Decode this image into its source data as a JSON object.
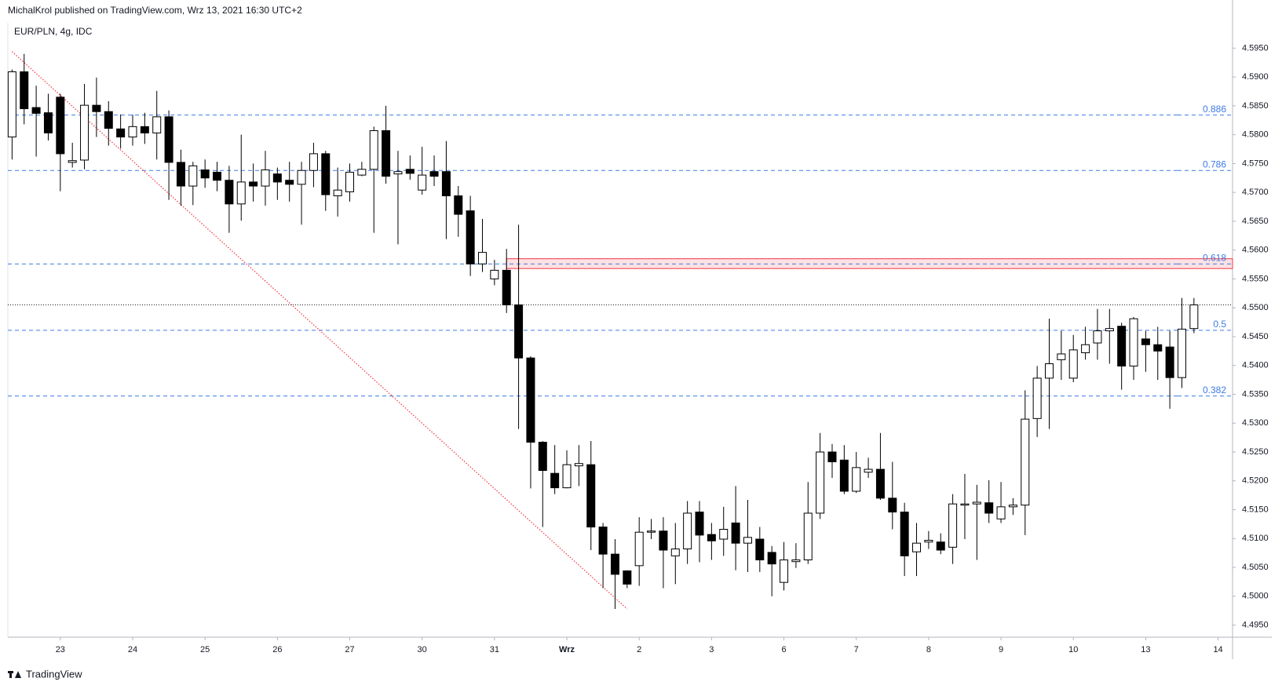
{
  "header": "MichalKrol published on TradingView.com, Wrz 13, 2021 16:30 UTC+2",
  "brand": "TradingView",
  "chart_data": {
    "type": "candlestick",
    "title": "EUR/PLN, 4g, IDC",
    "x": [
      0,
      1,
      2,
      3,
      4,
      5,
      6,
      7,
      8,
      9,
      10,
      11,
      12,
      13,
      14,
      15,
      16,
      17,
      18,
      19,
      20,
      21,
      22,
      23,
      24,
      25,
      26,
      27,
      28,
      29,
      30,
      31,
      32,
      33,
      34,
      35,
      36,
      37,
      38,
      39,
      40,
      41,
      42,
      43,
      44,
      45,
      46,
      47,
      48,
      49,
      50,
      51,
      52,
      53,
      54,
      55,
      56,
      57,
      58,
      59,
      60,
      61,
      62,
      63,
      64,
      65,
      66,
      67,
      68,
      69,
      70,
      71,
      72,
      73,
      74,
      75,
      76,
      77,
      78,
      79,
      80,
      81,
      82,
      83,
      84,
      85,
      86,
      87,
      88,
      89,
      90,
      91,
      92,
      93,
      94,
      95,
      96,
      97,
      98
    ],
    "open": [
      4.5796,
      4.5909,
      4.5847,
      4.5838,
      4.5865,
      4.5752,
      4.5756,
      4.5851,
      4.584,
      4.581,
      4.5796,
      4.5814,
      4.5803,
      4.5831,
      4.5752,
      4.5711,
      4.5739,
      4.5735,
      4.5721,
      4.568,
      4.5718,
      4.5711,
      4.5732,
      4.5721,
      4.5714,
      4.5738,
      4.5767,
      4.5694,
      4.5701,
      4.573,
      4.574,
      4.5807,
      4.5732,
      4.574,
      4.5704,
      4.5736,
      4.5736,
      4.5694,
      4.5668,
      4.5576,
      4.555,
      4.5565,
      4.5505,
      4.5413,
      4.5267,
      4.5213,
      4.5188,
      4.5226,
      4.5228,
      4.512,
      4.5073,
      4.5044,
      4.5053,
      4.5111,
      4.5113,
      4.507,
      4.5082,
      4.5146,
      4.5107,
      4.5099,
      4.5127,
      4.5092,
      4.5099,
      4.5076,
      4.5024,
      4.506,
      4.5063,
      4.5144,
      4.525,
      4.5236,
      4.5182,
      4.5215,
      4.522,
      4.517,
      4.5146,
      4.5077,
      4.5094,
      4.5094,
      4.5085,
      4.5158,
      4.516,
      4.5162,
      4.5134,
      4.5155,
      4.5158,
      4.5308,
      4.5378,
      4.541,
      4.5378,
      4.5422,
      4.5439,
      4.546,
      4.5468,
      4.5399,
      4.5446,
      4.5436,
      4.5432,
      4.5379,
      4.5464
    ],
    "high": [
      4.5913,
      4.594,
      4.5885,
      4.5871,
      4.5871,
      4.5786,
      4.5888,
      4.5899,
      4.5858,
      4.5835,
      4.5835,
      4.5838,
      4.5876,
      4.5842,
      4.5774,
      4.5753,
      4.5757,
      4.5753,
      4.5746,
      4.58,
      4.575,
      4.5772,
      4.5743,
      4.5753,
      4.5753,
      4.5786,
      4.5772,
      4.5743,
      4.575,
      4.5753,
      4.5814,
      4.585,
      4.5772,
      4.5764,
      4.5779,
      4.5764,
      4.5789,
      4.5711,
      4.5694,
      4.5654,
      4.5583,
      4.5602,
      4.5644,
      4.5416,
      4.5269,
      4.5262,
      4.5253,
      4.5262,
      4.5269,
      4.5127,
      4.5099,
      4.5045,
      4.5137,
      4.5134,
      4.5137,
      4.5127,
      4.5165,
      4.5165,
      4.5127,
      4.5155,
      4.5191,
      4.5167,
      4.512,
      4.5087,
      4.5094,
      4.5092,
      4.5198,
      4.5283,
      4.5264,
      4.5262,
      4.525,
      4.524,
      4.5283,
      4.5233,
      4.5162,
      4.5127,
      4.5113,
      4.5109,
      4.5177,
      4.5212,
      4.5193,
      4.5201,
      4.5198,
      4.517,
      4.5357,
      4.5399,
      4.5481,
      4.546,
      4.5453,
      4.5467,
      4.5498,
      4.5498,
      4.5474,
      4.5484,
      4.546,
      4.5467,
      4.546,
      4.5517,
      4.5517
    ],
    "low": [
      4.5757,
      4.5818,
      4.5762,
      4.579,
      4.5702,
      4.5743,
      4.574,
      4.5796,
      4.5781,
      4.5776,
      4.5781,
      4.5784,
      4.5757,
      4.5687,
      4.5677,
      4.5678,
      4.5708,
      4.5702,
      4.563,
      4.5651,
      4.5684,
      4.5677,
      4.5687,
      4.5684,
      4.5644,
      4.5709,
      4.5668,
      4.5658,
      4.5684,
      4.5728,
      4.563,
      4.5715,
      4.561,
      4.5722,
      4.5696,
      4.5711,
      4.5619,
      4.5623,
      4.5555,
      4.5562,
      4.5539,
      4.5491,
      4.529,
      4.5187,
      4.512,
      4.5177,
      4.5187,
      4.5191,
      4.508,
      4.5014,
      4.4978,
      4.5014,
      4.5018,
      4.5099,
      4.5014,
      4.5021,
      4.5056,
      4.5059,
      4.5063,
      4.507,
      4.5045,
      4.5042,
      4.5042,
      4.5,
      4.501,
      4.5049,
      4.5056,
      4.5134,
      4.5205,
      4.5177,
      4.5179,
      4.5205,
      4.5167,
      4.5116,
      4.5035,
      4.5035,
      4.5082,
      4.5073,
      4.5056,
      4.5099,
      4.5063,
      4.5127,
      4.5127,
      4.5141,
      4.5106,
      4.5276,
      4.529,
      4.5375,
      4.5371,
      4.541,
      4.541,
      4.5403,
      4.5358,
      4.5375,
      4.5389,
      4.5375,
      4.5325,
      4.5361,
      4.5456
    ],
    "close": [
      4.5909,
      4.5845,
      4.5837,
      4.5803,
      4.5767,
      4.5755,
      4.5851,
      4.584,
      4.5811,
      4.5796,
      4.5814,
      4.5803,
      4.5831,
      4.5752,
      4.5711,
      4.5746,
      4.5725,
      4.5721,
      4.568,
      4.5718,
      4.5711,
      4.5739,
      4.5718,
      4.5714,
      4.5738,
      4.5767,
      4.5696,
      4.5704,
      4.5735,
      4.574,
      4.5807,
      4.5728,
      4.5736,
      4.5733,
      4.573,
      4.5728,
      4.5694,
      4.5662,
      4.5576,
      4.5596,
      4.5565,
      4.5505,
      4.5413,
      4.5267,
      4.5218,
      4.5188,
      4.5228,
      4.523,
      4.512,
      4.5073,
      4.5038,
      4.5021,
      4.5111,
      4.5113,
      4.508,
      4.5082,
      4.5144,
      4.5106,
      4.5096,
      4.5116,
      4.5092,
      4.5102,
      4.5063,
      4.5056,
      4.5063,
      4.5063,
      4.5144,
      4.525,
      4.5233,
      4.5182,
      4.5223,
      4.522,
      4.517,
      4.5146,
      4.507,
      4.5092,
      4.5097,
      4.508,
      4.516,
      4.516,
      4.5163,
      4.5144,
      4.5155,
      4.5158,
      4.5307,
      4.5378,
      4.5403,
      4.542,
      4.5427,
      4.5436,
      4.546,
      4.5464,
      4.5399,
      4.5481,
      4.5436,
      4.5425,
      4.5379,
      4.5463,
      4.5505
    ],
    "up_color": "#ffffff",
    "down_color": "#000000",
    "xlim": [
      -0.35,
      101.2
    ],
    "xticks": [
      {
        "value": 4,
        "label": "23"
      },
      {
        "value": 10,
        "label": "24"
      },
      {
        "value": 16,
        "label": "25"
      },
      {
        "value": 22,
        "label": "26"
      },
      {
        "value": 28,
        "label": "27"
      },
      {
        "value": 34,
        "label": "30"
      },
      {
        "value": 40,
        "label": "31"
      },
      {
        "value": 46,
        "label": "Wrz"
      },
      {
        "value": 52,
        "label": "2"
      },
      {
        "value": 58,
        "label": "3"
      },
      {
        "value": 64,
        "label": "6"
      },
      {
        "value": 70,
        "label": "7"
      },
      {
        "value": 76,
        "label": "8"
      },
      {
        "value": 82,
        "label": "9"
      },
      {
        "value": 88,
        "label": "10"
      },
      {
        "value": 94,
        "label": "13"
      },
      {
        "value": 100,
        "label": "14"
      }
    ],
    "ylim": [
      4.4929,
      4.5994
    ],
    "yticks": [
      {
        "value": 4.495,
        "label": "4.4950"
      },
      {
        "value": 4.5,
        "label": "4.5000"
      },
      {
        "value": 4.505,
        "label": "4.5050"
      },
      {
        "value": 4.51,
        "label": "4.5100"
      },
      {
        "value": 4.515,
        "label": "4.5150"
      },
      {
        "value": 4.52,
        "label": "4.5200"
      },
      {
        "value": 4.525,
        "label": "4.5250"
      },
      {
        "value": 4.53,
        "label": "4.5300"
      },
      {
        "value": 4.535,
        "label": "4.5350"
      },
      {
        "value": 4.54,
        "label": "4.5400"
      },
      {
        "value": 4.545,
        "label": "4.5450"
      },
      {
        "value": 4.55,
        "label": "4.5500"
      },
      {
        "value": 4.555,
        "label": "4.5550"
      },
      {
        "value": 4.56,
        "label": "4.5600"
      },
      {
        "value": 4.565,
        "label": "4.5650"
      },
      {
        "value": 4.57,
        "label": "4.5700"
      },
      {
        "value": 4.575,
        "label": "4.5750"
      },
      {
        "value": 4.58,
        "label": "4.5800"
      },
      {
        "value": 4.585,
        "label": "4.5850"
      },
      {
        "value": 4.59,
        "label": "4.5900"
      },
      {
        "value": 4.595,
        "label": "4.5950"
      }
    ],
    "grid": false,
    "fib_levels": [
      {
        "label": "0.886",
        "value": 4.5834
      },
      {
        "label": "0.786",
        "value": 4.5738
      },
      {
        "label": "0.618",
        "value": 4.5576
      },
      {
        "label": "0.5",
        "value": 4.5461
      },
      {
        "label": "0.382",
        "value": 4.5347
      }
    ],
    "fib_color": "#3d7be6",
    "zone": {
      "from": 41,
      "top": 4.5585,
      "bottom": 4.5568,
      "color": "#f23645"
    },
    "trendline": {
      "x": [
        0,
        51
      ],
      "y": [
        4.5944,
        4.4978
      ],
      "color": "#f23645"
    }
  }
}
